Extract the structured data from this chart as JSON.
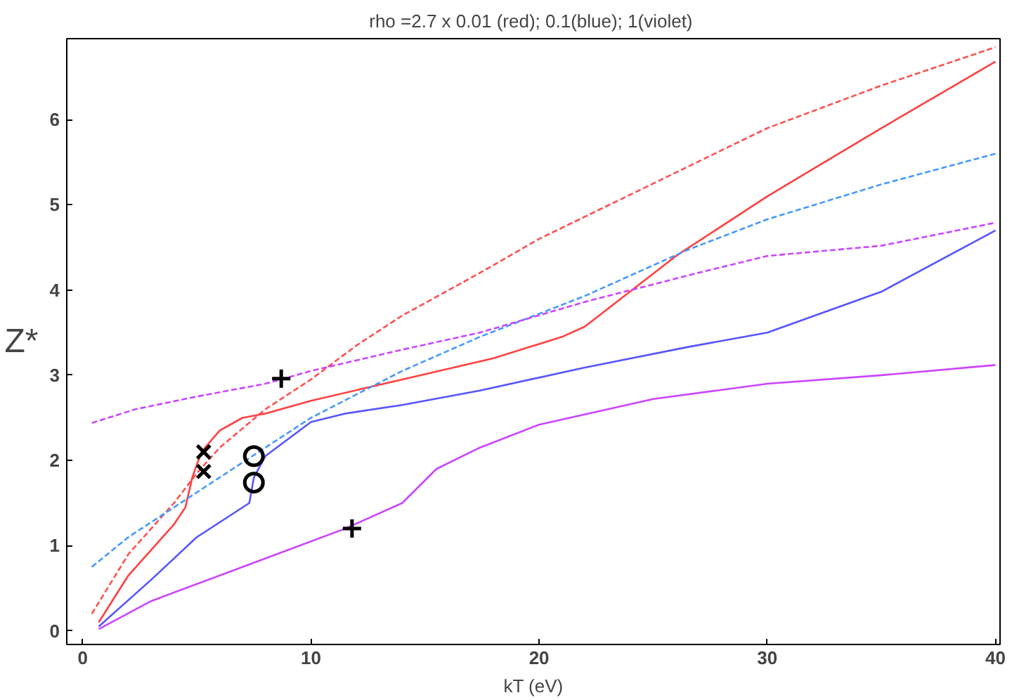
{
  "chart_data": {
    "type": "line",
    "title": "rho  =2.7 x 0.01 (red); 0.1(blue); 1(violet)",
    "xlabel": "kT (eV)",
    "ylabel": "Z*",
    "xlim": [
      -0.7,
      40.2
    ],
    "ylim": [
      -0.16,
      6.95
    ],
    "xticks": [
      0,
      10,
      20,
      30,
      40
    ],
    "yticks": [
      0,
      1,
      2,
      3,
      4,
      5,
      6
    ],
    "grid": false,
    "series": [
      {
        "color": "#ff5050",
        "line_style": "dashed",
        "x": [
          0.4,
          2,
          4,
          5,
          6,
          8,
          10,
          12,
          14,
          17.4,
          20,
          25,
          30,
          35,
          40
        ],
        "values": [
          0.2,
          0.9,
          1.5,
          1.85,
          2.15,
          2.6,
          2.95,
          3.35,
          3.7,
          4.2,
          4.6,
          5.25,
          5.9,
          6.4,
          6.85
        ]
      },
      {
        "color": "#ff4040",
        "line_style": "solid",
        "x": [
          0.7,
          2,
          4,
          4.5,
          4.8,
          5.2,
          6,
          7,
          8,
          10,
          14,
          18,
          21,
          22,
          26,
          30,
          35,
          40
        ],
        "values": [
          0.1,
          0.65,
          1.25,
          1.45,
          1.8,
          2.1,
          2.35,
          2.5,
          2.55,
          2.7,
          2.95,
          3.2,
          3.45,
          3.57,
          4.4,
          5.1,
          5.9,
          6.68
        ]
      },
      {
        "color": "#4499ff",
        "line_style": "dashed",
        "x": [
          0.4,
          2,
          4,
          6,
          8,
          10,
          14,
          17.4,
          22,
          26.5,
          30,
          35,
          40
        ],
        "values": [
          0.75,
          1.1,
          1.45,
          1.8,
          2.15,
          2.5,
          3.05,
          3.45,
          3.93,
          4.47,
          4.83,
          5.24,
          5.6
        ]
      },
      {
        "color": "#cc44ff",
        "line_style": "dashed",
        "x": [
          0.4,
          2.3,
          5,
          8,
          10,
          14,
          17.4,
          22,
          26.5,
          30,
          35,
          40
        ],
        "values": [
          2.44,
          2.6,
          2.75,
          2.9,
          3.05,
          3.3,
          3.5,
          3.86,
          4.17,
          4.4,
          4.52,
          4.79
        ]
      },
      {
        "color": "#5555ff",
        "line_style": "solid",
        "x": [
          0.7,
          3,
          5,
          7.3,
          7.5,
          8,
          10,
          11.5,
          14,
          17.4,
          22,
          26.5,
          30,
          35,
          40
        ],
        "values": [
          0.05,
          0.6,
          1.1,
          1.5,
          1.8,
          2.05,
          2.45,
          2.55,
          2.65,
          2.82,
          3.09,
          3.33,
          3.5,
          3.98,
          4.7
        ]
      },
      {
        "color": "#cc44ff",
        "line_style": "solid",
        "x": [
          0.7,
          3,
          7,
          11.5,
          14,
          15.5,
          17.4,
          20,
          25,
          30,
          35,
          40
        ],
        "values": [
          0.02,
          0.35,
          0.75,
          1.2,
          1.5,
          1.9,
          2.15,
          2.42,
          2.72,
          2.9,
          3.0,
          3.12
        ]
      },
      {
        "type": "scatter",
        "marker": "cross",
        "color": "#000000",
        "x": [
          8.7,
          11.8
        ],
        "values": [
          2.96,
          1.2
        ]
      },
      {
        "type": "scatter",
        "marker": "x",
        "color": "#000000",
        "x": [
          5.3,
          5.3
        ],
        "values": [
          2.1,
          1.87
        ]
      },
      {
        "type": "scatter",
        "marker": "circle",
        "color": "#000000",
        "x": [
          7.5,
          7.5
        ],
        "values": [
          2.05,
          1.74
        ]
      }
    ]
  }
}
